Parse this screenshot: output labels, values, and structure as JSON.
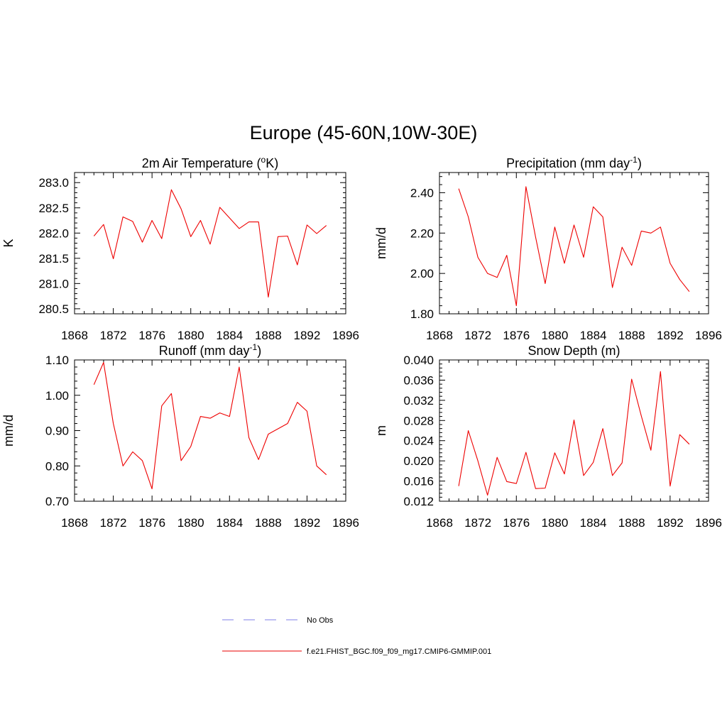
{
  "figure": {
    "title": "Europe (45-60N,10W-30E)"
  },
  "legend": {
    "entries": [
      {
        "label": "No Obs",
        "color": "#9999ee",
        "style": "dashed"
      },
      {
        "label": "f.e21.FHIST_BGC.f09_f09_mg17.CMIP6-GMMIP.001",
        "color": "#ee3333",
        "style": "solid"
      }
    ]
  },
  "chart_data": [
    {
      "type": "line",
      "title": "2m Air Temperature (",
      "title_sup": "o",
      "title_after": "K)",
      "ylabel": "K",
      "xlim": [
        1868,
        1896
      ],
      "ylim": [
        280.4,
        283.2
      ],
      "xticks": [
        1868,
        1872,
        1876,
        1880,
        1884,
        1888,
        1892,
        1896
      ],
      "yticks": [
        280.5,
        281.0,
        281.5,
        282.0,
        282.5,
        283.0
      ],
      "ytick_labels": [
        "280.5",
        "281.0",
        "281.5",
        "282.0",
        "282.5",
        "283.0"
      ],
      "series": [
        {
          "name": "f.e21.FHIST_BGC.f09_f09_mg17.CMIP6-GMMIP.001",
          "color": "#ee0000",
          "x": [
            1870,
            1871,
            1872,
            1873,
            1874,
            1875,
            1876,
            1877,
            1878,
            1879,
            1880,
            1881,
            1882,
            1883,
            1884,
            1885,
            1886,
            1887,
            1888,
            1889,
            1890,
            1891,
            1892,
            1893,
            1894
          ],
          "values": [
            281.94,
            282.17,
            281.49,
            282.32,
            282.23,
            281.82,
            282.25,
            281.89,
            282.86,
            282.48,
            281.93,
            282.25,
            281.78,
            282.51,
            282.3,
            282.09,
            282.22,
            282.22,
            280.73,
            281.93,
            281.94,
            281.37,
            282.16,
            281.99,
            282.15
          ]
        }
      ]
    },
    {
      "type": "line",
      "title": "Precipitation (mm day",
      "title_sup": "-1",
      "title_after": ")",
      "ylabel": "mm/d",
      "xlim": [
        1868,
        1896
      ],
      "ylim": [
        1.8,
        2.5
      ],
      "xticks": [
        1868,
        1872,
        1876,
        1880,
        1884,
        1888,
        1892,
        1896
      ],
      "yticks": [
        1.8,
        2.0,
        2.2,
        2.4
      ],
      "ytick_labels": [
        "1.80",
        "2.00",
        "2.20",
        "2.40"
      ],
      "series": [
        {
          "name": "f.e21.FHIST_BGC.f09_f09_mg17.CMIP6-GMMIP.001",
          "color": "#ee0000",
          "x": [
            1870,
            1871,
            1872,
            1873,
            1874,
            1875,
            1876,
            1877,
            1878,
            1879,
            1880,
            1881,
            1882,
            1883,
            1884,
            1885,
            1886,
            1887,
            1888,
            1889,
            1890,
            1891,
            1892,
            1893,
            1894
          ],
          "values": [
            2.42,
            2.28,
            2.08,
            2.0,
            1.98,
            2.09,
            1.84,
            2.43,
            2.18,
            1.95,
            2.23,
            2.05,
            2.24,
            2.08,
            2.33,
            2.28,
            1.93,
            2.13,
            2.04,
            2.21,
            2.2,
            2.23,
            2.05,
            1.97,
            1.91
          ]
        }
      ]
    },
    {
      "type": "line",
      "title": "Runoff (mm day",
      "title_sup": "-1",
      "title_after": ")",
      "ylabel": "mm/d",
      "xlim": [
        1868,
        1896
      ],
      "ylim": [
        0.7,
        1.1
      ],
      "xticks": [
        1868,
        1872,
        1876,
        1880,
        1884,
        1888,
        1892,
        1896
      ],
      "yticks": [
        0.7,
        0.8,
        0.9,
        1.0,
        1.1
      ],
      "ytick_labels": [
        "0.70",
        "0.80",
        "0.90",
        "1.00",
        "1.10"
      ],
      "series": [
        {
          "name": "f.e21.FHIST_BGC.f09_f09_mg17.CMIP6-GMMIP.001",
          "color": "#ee0000",
          "x": [
            1870,
            1871,
            1872,
            1873,
            1874,
            1875,
            1876,
            1877,
            1878,
            1879,
            1880,
            1881,
            1882,
            1883,
            1884,
            1885,
            1886,
            1887,
            1888,
            1889,
            1890,
            1891,
            1892,
            1893,
            1894
          ],
          "values": [
            1.03,
            1.093,
            0.92,
            0.8,
            0.84,
            0.815,
            0.735,
            0.97,
            1.005,
            0.815,
            0.855,
            0.94,
            0.935,
            0.95,
            0.94,
            1.08,
            0.88,
            0.818,
            0.89,
            0.905,
            0.92,
            0.98,
            0.955,
            0.8,
            0.775
          ]
        }
      ]
    },
    {
      "type": "line",
      "title": "Snow Depth (m)",
      "title_sup": "",
      "title_after": "",
      "ylabel": "m",
      "xlim": [
        1868,
        1896
      ],
      "ylim": [
        0.012,
        0.04
      ],
      "xticks": [
        1868,
        1872,
        1876,
        1880,
        1884,
        1888,
        1892,
        1896
      ],
      "yticks": [
        0.012,
        0.016,
        0.02,
        0.024,
        0.028,
        0.032,
        0.036,
        0.04
      ],
      "ytick_labels": [
        "0.012",
        "0.016",
        "0.020",
        "0.024",
        "0.028",
        "0.032",
        "0.036",
        "0.040"
      ],
      "series": [
        {
          "name": "f.e21.FHIST_BGC.f09_f09_mg17.CMIP6-GMMIP.001",
          "color": "#ee0000",
          "x": [
            1870,
            1871,
            1872,
            1873,
            1874,
            1875,
            1876,
            1877,
            1878,
            1879,
            1880,
            1881,
            1882,
            1883,
            1884,
            1885,
            1886,
            1887,
            1888,
            1889,
            1890,
            1891,
            1892,
            1893,
            1894
          ],
          "values": [
            0.015,
            0.026,
            0.02,
            0.0132,
            0.0207,
            0.0159,
            0.0155,
            0.0217,
            0.0145,
            0.0146,
            0.0216,
            0.0174,
            0.0281,
            0.0171,
            0.0197,
            0.0264,
            0.0171,
            0.0196,
            0.0362,
            0.0289,
            0.0221,
            0.0377,
            0.015,
            0.0252,
            0.0233
          ]
        }
      ]
    }
  ]
}
